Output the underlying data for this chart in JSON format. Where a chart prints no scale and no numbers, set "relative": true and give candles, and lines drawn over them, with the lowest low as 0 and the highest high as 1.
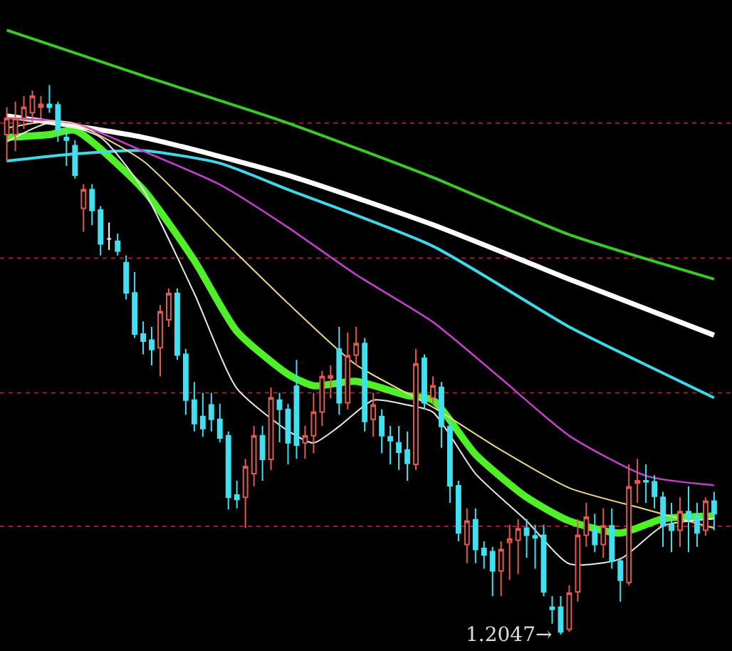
{
  "chart_data": {
    "type": "candlestick",
    "relative": true,
    "categories": [
      null,
      null,
      null,
      null,
      null,
      null,
      null,
      null,
      null,
      null,
      null,
      null,
      null,
      null,
      null,
      null,
      null,
      null,
      null,
      null,
      null,
      null,
      null,
      null,
      null,
      null,
      null,
      null,
      null,
      null,
      null,
      null,
      null,
      null,
      null,
      null,
      null,
      null,
      null,
      null,
      null,
      null,
      null,
      null,
      null,
      null,
      null,
      null,
      null,
      null,
      null,
      null,
      null,
      null,
      null,
      null,
      null,
      null,
      null,
      null,
      null,
      null,
      null,
      null,
      null,
      null,
      null,
      null,
      null,
      null,
      null,
      null,
      null,
      null,
      null,
      null,
      null,
      null,
      null,
      null,
      null,
      null,
      null,
      null
    ],
    "ohlc": [
      [
        0.91,
        0.96,
        0.86,
        0.94
      ],
      [
        0.91,
        0.97,
        0.88,
        0.94
      ],
      [
        0.94,
        0.98,
        0.92,
        0.96
      ],
      [
        0.95,
        0.99,
        0.93,
        0.98
      ],
      [
        0.96,
        0.98,
        0.94,
        0.965
      ],
      [
        0.965,
        1.0,
        0.95,
        0.96
      ],
      [
        0.964,
        0.97,
        0.897,
        0.918
      ],
      [
        0.905,
        0.92,
        0.853,
        0.9
      ],
      [
        0.89,
        0.9,
        0.83,
        0.836
      ],
      [
        0.776,
        0.82,
        0.733,
        0.81
      ],
      [
        0.81,
        0.82,
        0.745,
        0.772
      ],
      [
        0.773,
        0.78,
        0.69,
        0.711
      ],
      [
        0.72,
        0.75,
        0.7,
        0.72
      ],
      [
        0.716,
        0.73,
        0.69,
        0.698
      ],
      [
        0.677,
        0.69,
        0.61,
        0.622
      ],
      [
        0.622,
        0.66,
        0.54,
        0.547
      ],
      [
        0.547,
        0.57,
        0.51,
        0.534
      ],
      [
        0.536,
        0.56,
        0.49,
        0.519
      ],
      [
        0.522,
        0.6,
        0.47,
        0.588
      ],
      [
        0.573,
        0.63,
        0.56,
        0.621
      ],
      [
        0.621,
        0.63,
        0.5,
        0.509
      ],
      [
        0.51,
        0.52,
        0.4,
        0.427
      ],
      [
        0.427,
        0.46,
        0.37,
        0.384
      ],
      [
        0.397,
        0.44,
        0.36,
        0.375
      ],
      [
        0.418,
        0.44,
        0.37,
        0.392
      ],
      [
        0.392,
        0.42,
        0.35,
        0.358
      ],
      [
        0.362,
        0.37,
        0.228,
        0.25
      ],
      [
        0.254,
        0.28,
        0.23,
        0.246
      ],
      [
        0.25,
        0.32,
        0.194,
        0.306
      ],
      [
        0.293,
        0.38,
        0.27,
        0.362
      ],
      [
        0.362,
        0.38,
        0.28,
        0.319
      ],
      [
        0.319,
        0.45,
        0.3,
        0.431
      ],
      [
        0.427,
        0.44,
        0.35,
        0.41
      ],
      [
        0.41,
        0.42,
        0.31,
        0.349
      ],
      [
        0.452,
        0.5,
        0.32,
        0.345
      ],
      [
        0.349,
        0.38,
        0.32,
        0.362
      ],
      [
        0.362,
        0.44,
        0.33,
        0.405
      ],
      [
        0.405,
        0.48,
        0.38,
        0.47
      ],
      [
        0.467,
        0.49,
        0.43,
        0.471
      ],
      [
        0.52,
        0.56,
        0.4,
        0.422
      ],
      [
        0.422,
        0.55,
        0.41,
        0.508
      ],
      [
        0.509,
        0.56,
        0.49,
        0.53
      ],
      [
        0.53,
        0.54,
        0.37,
        0.388
      ],
      [
        0.392,
        0.44,
        0.36,
        0.418
      ],
      [
        0.397,
        0.41,
        0.33,
        0.362
      ],
      [
        0.36,
        0.38,
        0.31,
        0.353
      ],
      [
        0.349,
        0.38,
        0.3,
        0.332
      ],
      [
        0.336,
        0.37,
        0.28,
        0.312
      ],
      [
        0.31,
        0.52,
        0.3,
        0.493
      ],
      [
        0.503,
        0.51,
        0.41,
        0.422
      ],
      [
        0.431,
        0.47,
        0.42,
        0.453
      ],
      [
        0.45,
        0.46,
        0.34,
        0.379
      ],
      [
        0.379,
        0.39,
        0.24,
        0.271
      ],
      [
        0.271,
        0.28,
        0.17,
        0.185
      ],
      [
        0.164,
        0.23,
        0.13,
        0.207
      ],
      [
        0.209,
        0.23,
        0.13,
        0.155
      ],
      [
        0.157,
        0.17,
        0.12,
        0.145
      ],
      [
        0.151,
        0.16,
        0.07,
        0.116
      ],
      [
        0.116,
        0.17,
        0.07,
        0.155
      ],
      [
        0.168,
        0.2,
        0.1,
        0.174
      ],
      [
        0.172,
        0.21,
        0.11,
        0.193
      ],
      [
        0.194,
        0.21,
        0.14,
        0.181
      ],
      [
        0.18,
        0.2,
        0.12,
        0.176
      ],
      [
        0.181,
        0.2,
        0.07,
        0.078
      ],
      [
        0.05,
        0.07,
        0.02,
        0.046
      ],
      [
        0.05,
        0.07,
        0,
        0.005
      ],
      [
        0.01,
        0.09,
        0.005,
        0.076
      ],
      [
        0.078,
        0.21,
        0.06,
        0.181
      ],
      [
        0.181,
        0.24,
        0.16,
        0.214
      ],
      [
        0.19,
        0.22,
        0.15,
        0.164
      ],
      [
        0.164,
        0.23,
        0.14,
        0.198
      ],
      [
        0.198,
        0.23,
        0.12,
        0.134
      ],
      [
        0.134,
        0.14,
        0.06,
        0.099
      ],
      [
        0.095,
        0.31,
        0.09,
        0.269
      ],
      [
        0.276,
        0.32,
        0.24,
        0.28
      ],
      [
        0.28,
        0.31,
        0.24,
        0.278
      ],
      [
        0.278,
        0.29,
        0.23,
        0.252
      ],
      [
        0.25,
        0.26,
        0.16,
        0.198
      ],
      [
        0.2,
        0.24,
        0.15,
        0.19
      ],
      [
        0.19,
        0.25,
        0.16,
        0.224
      ],
      [
        0.224,
        0.27,
        0.15,
        0.211
      ],
      [
        0.216,
        0.24,
        0.16,
        0.185
      ],
      [
        0.19,
        0.25,
        0.18,
        0.243
      ],
      [
        0.243,
        0.26,
        0.19,
        0.22
      ]
    ],
    "colors": [
      "#e05a50",
      "#e05a50",
      "#e05a50",
      "#e05a50",
      "#e05a50",
      "#40e0f0",
      "#40e0f0",
      "#40e0f0",
      "#40e0f0",
      "#e05a50",
      "#40e0f0",
      "#40e0f0",
      "#ffffff",
      "#40e0f0",
      "#40e0f0",
      "#40e0f0",
      "#40e0f0",
      "#40e0f0",
      "#e05a50",
      "#e05a50",
      "#40e0f0",
      "#40e0f0",
      "#40e0f0",
      "#40e0f0",
      "#40e0f0",
      "#40e0f0",
      "#40e0f0",
      "#40e0f0",
      "#e05a50",
      "#e05a50",
      "#40e0f0",
      "#e05a50",
      "#40e0f0",
      "#40e0f0",
      "#40e0f0",
      "#e05a50",
      "#e05a50",
      "#e05a50",
      "#e05a50",
      "#40e0f0",
      "#e05a50",
      "#e05a50",
      "#40e0f0",
      "#e05a50",
      "#40e0f0",
      "#40e0f0",
      "#40e0f0",
      "#40e0f0",
      "#e05a50",
      "#40e0f0",
      "#e05a50",
      "#40e0f0",
      "#40e0f0",
      "#40e0f0",
      "#e05a50",
      "#40e0f0",
      "#40e0f0",
      "#40e0f0",
      "#e05a50",
      "#e05a50",
      "#e05a50",
      "#40e0f0",
      "#40e0f0",
      "#40e0f0",
      "#40e0f0",
      "#40e0f0",
      "#e05a50",
      "#e05a50",
      "#e05a50",
      "#40e0f0",
      "#e05a50",
      "#40e0f0",
      "#40e0f0",
      "#e05a50",
      "#e05a50",
      "#40e0f0",
      "#40e0f0",
      "#40e0f0",
      "#40e0f0",
      "#e05a50",
      "#40e0f0",
      "#40e0f0",
      "#e05a50",
      "#40e0f0"
    ],
    "series": [
      {
        "type": "line",
        "color": "#3cc828",
        "values": [
          1.1,
          null,
          null,
          null,
          null,
          null,
          null,
          null,
          null,
          null,
          null,
          null,
          null,
          null,
          null,
          null,
          1.017,
          null,
          null,
          null,
          null,
          null,
          null,
          null,
          null,
          null,
          null,
          null,
          null,
          null,
          null,
          null,
          null,
          0.931,
          null,
          null,
          null,
          null,
          null,
          null,
          null,
          null,
          null,
          null,
          null,
          null,
          null,
          null,
          null,
          null,
          0.832,
          null,
          null,
          null,
          null,
          null,
          null,
          null,
          null,
          null,
          null,
          null,
          null,
          null,
          null,
          null,
          0.728,
          null,
          null,
          null,
          null,
          null,
          null,
          null,
          null,
          null,
          null,
          null,
          null,
          null,
          null,
          null,
          null,
          0.647
        ]
      },
      {
        "type": "line",
        "color": "#ffffff",
        "values": [
          0.944,
          null,
          null,
          null,
          null,
          null,
          null,
          null,
          null,
          null,
          null,
          null,
          null,
          null,
          null,
          null,
          0.905,
          null,
          null,
          null,
          null,
          null,
          null,
          null,
          null,
          null,
          null,
          null,
          null,
          null,
          null,
          null,
          null,
          0.836,
          null,
          null,
          null,
          null,
          null,
          null,
          null,
          null,
          null,
          null,
          null,
          null,
          null,
          null,
          null,
          null,
          0.746,
          null,
          null,
          null,
          null,
          null,
          null,
          null,
          null,
          null,
          null,
          null,
          null,
          null,
          null,
          null,
          0.647,
          null,
          null,
          null,
          null,
          null,
          null,
          null,
          null,
          null,
          null,
          null,
          null,
          null,
          null,
          null,
          null,
          0.545
        ]
      },
      {
        "type": "line",
        "color": "#40d8e8",
        "values": [
          0.862,
          null,
          null,
          null,
          null,
          null,
          null,
          null,
          0.875,
          null,
          null,
          null,
          null,
          null,
          null,
          null,
          0.881,
          null,
          null,
          null,
          null,
          null,
          null,
          null,
          null,
          0.858,
          null,
          null,
          null,
          null,
          null,
          null,
          null,
          0.81,
          null,
          null,
          null,
          null,
          null,
          null,
          null,
          null,
          null,
          null,
          null,
          null,
          null,
          null,
          null,
          null,
          0.707,
          null,
          null,
          null,
          null,
          null,
          null,
          null,
          null,
          null,
          null,
          null,
          null,
          null,
          null,
          null,
          0.56,
          null,
          null,
          null,
          null,
          null,
          null,
          null,
          null,
          0.491,
          null,
          null,
          null,
          null,
          null,
          null,
          null,
          0.431
        ]
      },
      {
        "type": "line",
        "color": "#c040c8",
        "values": [
          0.94,
          null,
          null,
          null,
          null,
          null,
          null,
          null,
          0.93,
          null,
          null,
          null,
          null,
          null,
          null,
          null,
          0.88,
          null,
          null,
          null,
          null,
          null,
          null,
          null,
          null,
          0.819,
          null,
          null,
          null,
          null,
          null,
          null,
          null,
          0.741,
          null,
          null,
          null,
          null,
          null,
          null,
          null,
          0.655,
          null,
          null,
          null,
          null,
          null,
          null,
          null,
          null,
          0.569,
          null,
          null,
          null,
          null,
          null,
          null,
          null,
          0.466,
          null,
          null,
          null,
          null,
          null,
          null,
          null,
          0.362,
          null,
          null,
          null,
          null,
          null,
          null,
          null,
          null,
          0.289,
          null,
          null,
          null,
          null,
          null,
          null,
          null,
          0.272
        ]
      },
      {
        "type": "line",
        "color": "#e8d890",
        "values": [
          0.922,
          null,
          null,
          null,
          null,
          0.935,
          null,
          null,
          0.93,
          null,
          null,
          null,
          null,
          null,
          null,
          null,
          0.862,
          null,
          null,
          null,
          null,
          null,
          null,
          null,
          null,
          0.724,
          null,
          null,
          null,
          null,
          null,
          null,
          null,
          0.603,
          null,
          null,
          null,
          null,
          null,
          null,
          null,
          0.491,
          null,
          null,
          null,
          null,
          null,
          null,
          null,
          null,
          0.414,
          null,
          null,
          null,
          null,
          null,
          null,
          null,
          0.336,
          null,
          null,
          null,
          null,
          null,
          null,
          null,
          0.267,
          null,
          null,
          null,
          null,
          null,
          null,
          null,
          null,
          0.228,
          null,
          null,
          null,
          null,
          null,
          null,
          null,
          0.194
        ]
      },
      {
        "type": "line",
        "color": "#e8e8e8",
        "values": [
          0.897,
          null,
          null,
          null,
          null,
          0.931,
          null,
          null,
          null,
          null,
          null,
          0.905,
          null,
          null,
          null,
          null,
          0.81,
          null,
          null,
          null,
          null,
          null,
          0.621,
          null,
          null,
          null,
          null,
          0.448,
          null,
          null,
          null,
          null,
          null,
          0.371,
          null,
          null,
          0.349,
          null,
          null,
          0.379,
          null,
          null,
          null,
          0.427,
          null,
          null,
          null,
          0.418,
          null,
          null,
          0.405,
          null,
          null,
          null,
          null,
          0.293,
          null,
          null,
          null,
          null,
          null,
          0.207,
          null,
          null,
          null,
          null,
          0.129,
          null,
          null,
          null,
          null,
          null,
          0.138,
          null,
          null,
          null,
          null,
          0.198,
          null,
          null,
          null,
          null,
          null,
          0.211
        ]
      },
      {
        "type": "line",
        "color": "#50f028",
        "values": [
          0.905,
          null,
          null,
          null,
          null,
          0.91,
          null,
          null,
          0.918,
          null,
          null,
          null,
          null,
          null,
          null,
          null,
          0.81,
          null,
          null,
          null,
          null,
          null,
          0.681,
          null,
          null,
          null,
          null,
          0.552,
          null,
          null,
          null,
          null,
          null,
          0.474,
          null,
          null,
          0.453,
          null,
          null,
          null,
          null,
          0.461,
          null,
          null,
          null,
          null,
          null,
          0.435,
          null,
          null,
          0.427,
          null,
          null,
          null,
          null,
          0.328,
          null,
          null,
          null,
          null,
          null,
          0.25,
          null,
          null,
          null,
          null,
          0.207,
          null,
          null,
          null,
          null,
          null,
          0.185,
          null,
          null,
          null,
          null,
          0.211,
          null,
          null,
          null,
          null,
          null,
          0.216
        ]
      }
    ],
    "ref_lines": [
      {
        "axis": "y",
        "value": 0.931,
        "color": "#a02020",
        "line_style": "dotted"
      },
      {
        "axis": "y",
        "value": 0.685,
        "color": "#a02020",
        "line_style": "dotted"
      },
      {
        "axis": "y",
        "value": 0.44,
        "color": "#a02020",
        "line_style": "dotted"
      },
      {
        "axis": "y",
        "value": 0.197,
        "color": "#a02020",
        "line_style": "dotted"
      }
    ],
    "annotations": [
      "1.2047→"
    ]
  }
}
